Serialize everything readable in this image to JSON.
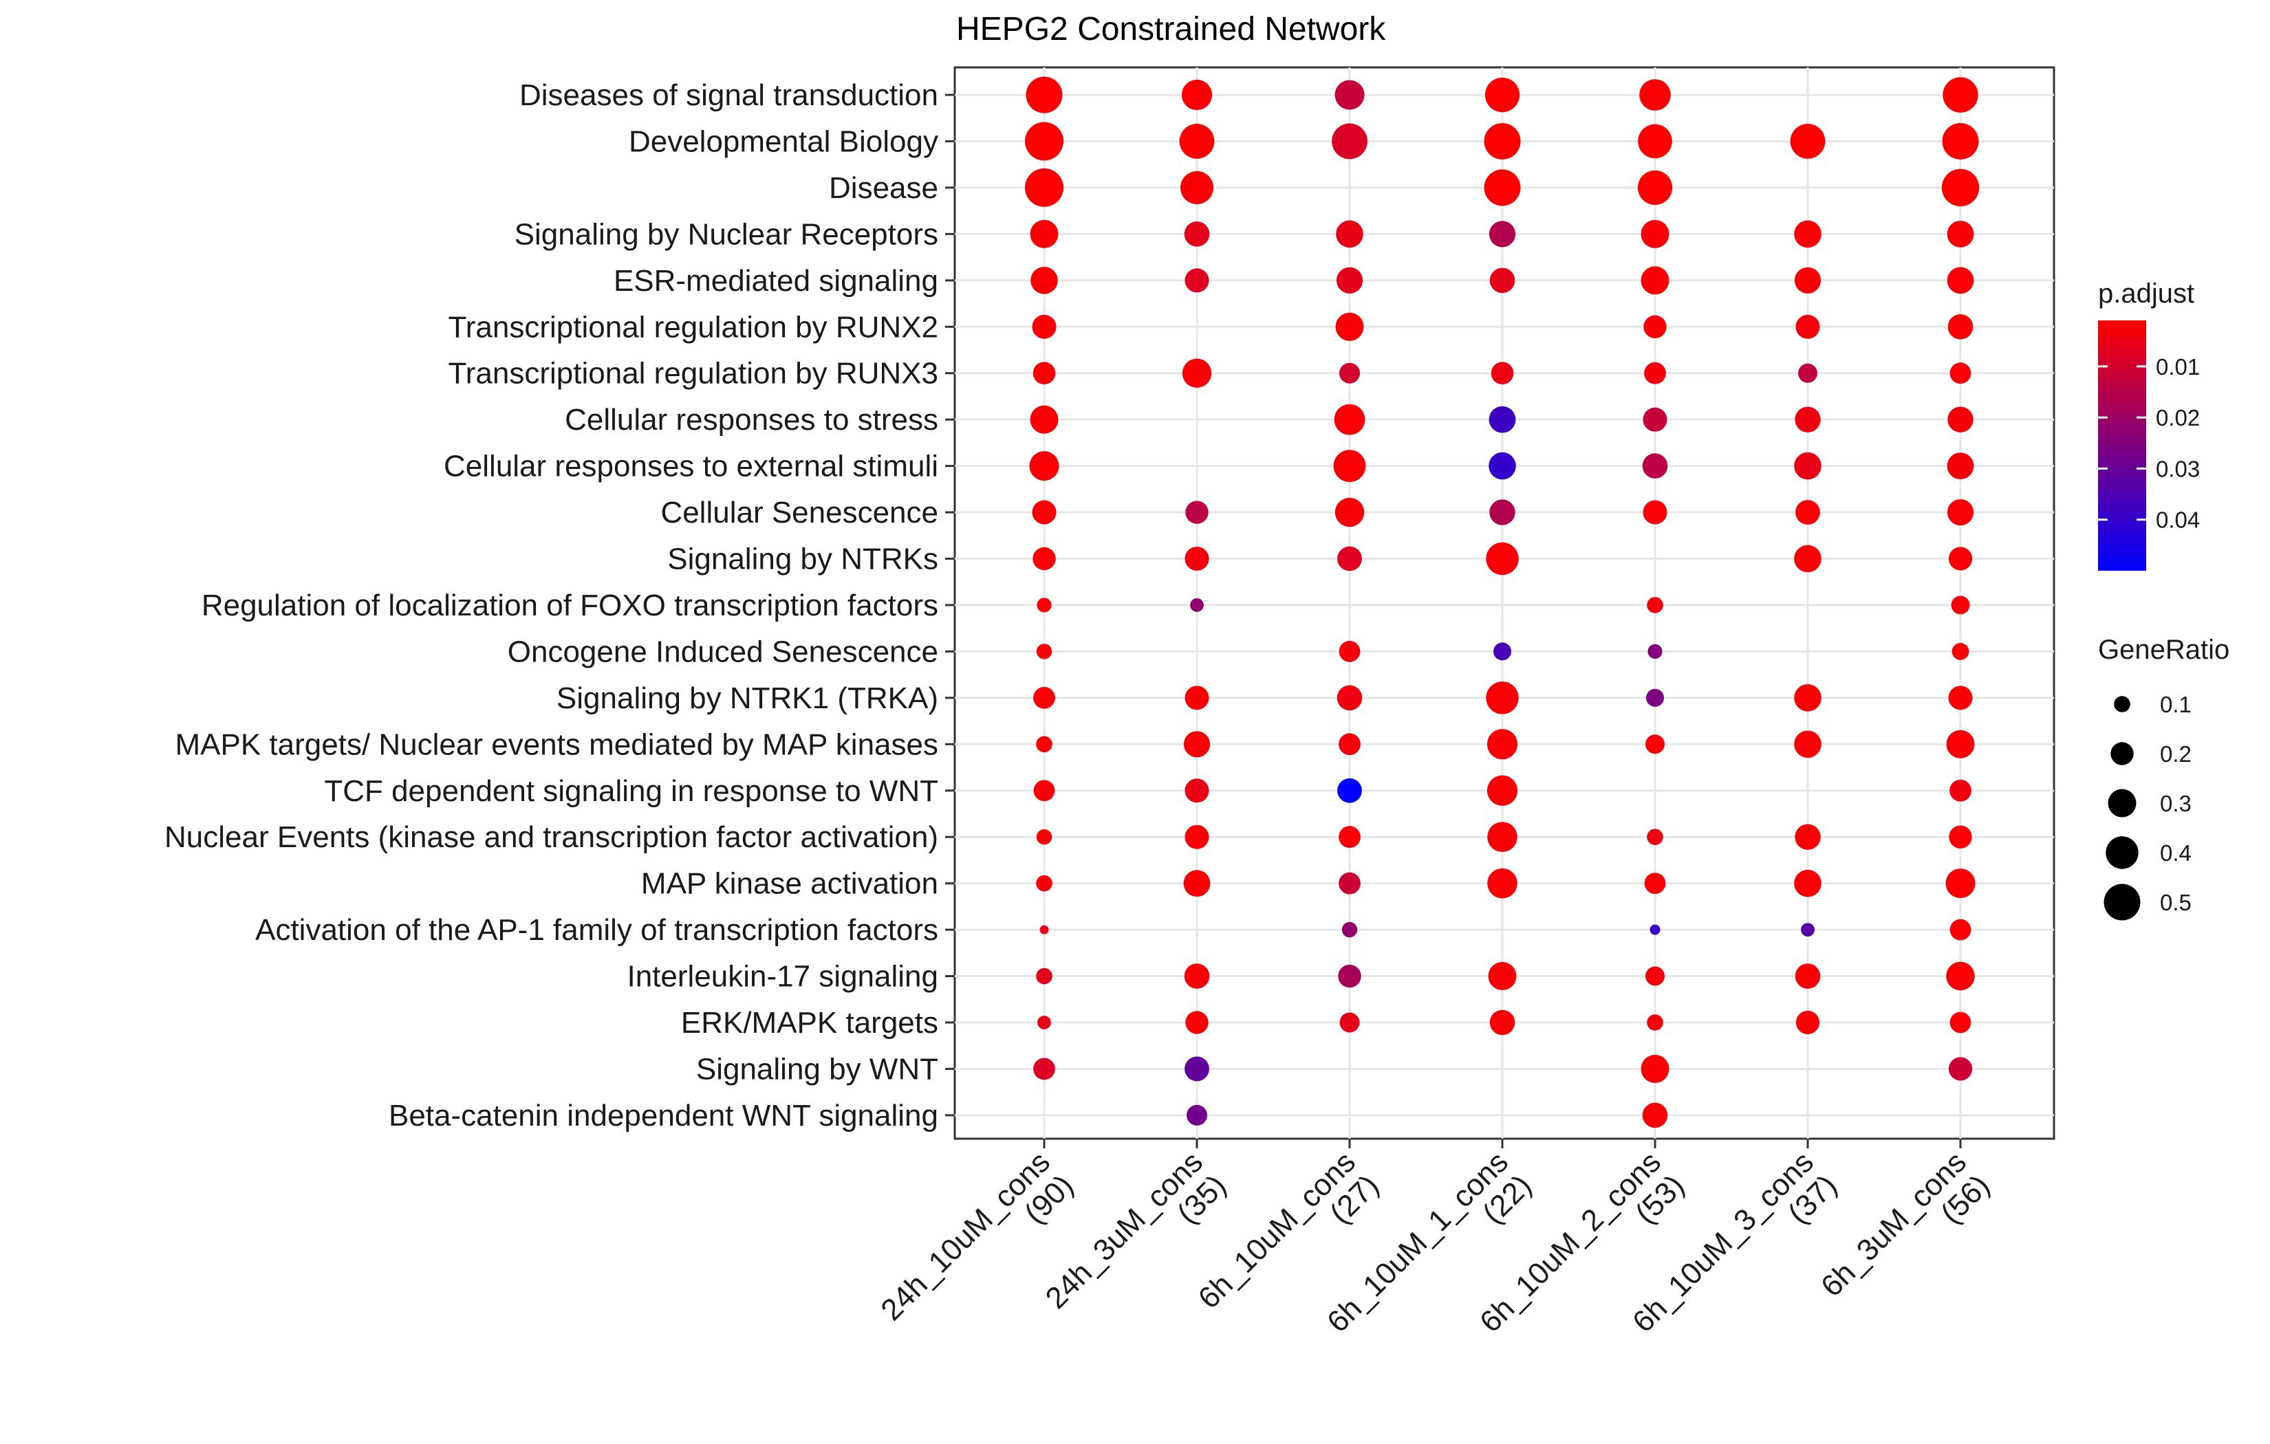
{
  "chart_data": {
    "type": "dot",
    "title": "HEPG2 Constrained Network",
    "xlabel": "",
    "ylabel": "",
    "grid": true,
    "legend_position": "right",
    "categories_x": [
      {
        "line1": "24h_10uM_cons",
        "line2": "(90)"
      },
      {
        "line1": "24h_3uM_cons",
        "line2": "(35)"
      },
      {
        "line1": "6h_10uM_cons",
        "line2": "(27)"
      },
      {
        "line1": "6h_10uM_1_cons",
        "line2": "(22)"
      },
      {
        "line1": "6h_10uM_2_cons",
        "line2": "(53)"
      },
      {
        "line1": "6h_10uM_3_cons",
        "line2": "(37)"
      },
      {
        "line1": "6h_3uM_cons",
        "line2": "(56)"
      }
    ],
    "categories_y": [
      "Diseases of signal transduction",
      "Developmental Biology",
      "Disease",
      "Signaling by Nuclear Receptors",
      "ESR-mediated signaling",
      "Transcriptional regulation by RUNX2",
      "Transcriptional regulation by RUNX3",
      "Cellular responses to stress",
      "Cellular responses to external stimuli",
      "Cellular Senescence",
      "Signaling by NTRKs",
      "Regulation of localization of FOXO transcription factors",
      "Oncogene Induced Senescence",
      "Signaling by NTRK1 (TRKA)",
      "MAPK targets/ Nuclear events mediated by MAP kinases",
      "TCF dependent signaling in response to WNT",
      "Nuclear Events (kinase and transcription factor activation)",
      "MAP kinase activation",
      "Activation of the AP-1 family of transcription factors",
      "Interleukin-17 signaling",
      "ERK/MAPK targets",
      "Signaling by WNT",
      "Beta-catenin independent WNT signaling"
    ],
    "points": [
      {
        "x": 0,
        "y": 0,
        "gene_ratio": 0.5,
        "p_adjust": 0.001
      },
      {
        "x": 1,
        "y": 0,
        "gene_ratio": 0.35,
        "p_adjust": 0.002
      },
      {
        "x": 2,
        "y": 0,
        "gene_ratio": 0.33,
        "p_adjust": 0.012
      },
      {
        "x": 3,
        "y": 0,
        "gene_ratio": 0.45,
        "p_adjust": 0.001
      },
      {
        "x": 4,
        "y": 0,
        "gene_ratio": 0.37,
        "p_adjust": 0.002
      },
      {
        "x": 6,
        "y": 0,
        "gene_ratio": 0.47,
        "p_adjust": 0.001
      },
      {
        "x": 0,
        "y": 1,
        "gene_ratio": 0.56,
        "p_adjust": 0.001
      },
      {
        "x": 1,
        "y": 1,
        "gene_ratio": 0.46,
        "p_adjust": 0.001
      },
      {
        "x": 2,
        "y": 1,
        "gene_ratio": 0.48,
        "p_adjust": 0.008
      },
      {
        "x": 3,
        "y": 1,
        "gene_ratio": 0.5,
        "p_adjust": 0.001
      },
      {
        "x": 4,
        "y": 1,
        "gene_ratio": 0.44,
        "p_adjust": 0.001
      },
      {
        "x": 5,
        "y": 1,
        "gene_ratio": 0.46,
        "p_adjust": 0.001
      },
      {
        "x": 6,
        "y": 1,
        "gene_ratio": 0.5,
        "p_adjust": 0.001
      },
      {
        "x": 0,
        "y": 2,
        "gene_ratio": 0.56,
        "p_adjust": 0.001
      },
      {
        "x": 1,
        "y": 2,
        "gene_ratio": 0.41,
        "p_adjust": 0.002
      },
      {
        "x": 3,
        "y": 2,
        "gene_ratio": 0.5,
        "p_adjust": 0.001
      },
      {
        "x": 4,
        "y": 2,
        "gene_ratio": 0.45,
        "p_adjust": 0.001
      },
      {
        "x": 6,
        "y": 2,
        "gene_ratio": 0.53,
        "p_adjust": 0.001
      },
      {
        "x": 0,
        "y": 3,
        "gene_ratio": 0.3,
        "p_adjust": 0.002
      },
      {
        "x": 1,
        "y": 3,
        "gene_ratio": 0.24,
        "p_adjust": 0.006
      },
      {
        "x": 2,
        "y": 3,
        "gene_ratio": 0.28,
        "p_adjust": 0.005
      },
      {
        "x": 3,
        "y": 3,
        "gene_ratio": 0.26,
        "p_adjust": 0.016
      },
      {
        "x": 4,
        "y": 3,
        "gene_ratio": 0.3,
        "p_adjust": 0.002
      },
      {
        "x": 5,
        "y": 3,
        "gene_ratio": 0.28,
        "p_adjust": 0.002
      },
      {
        "x": 6,
        "y": 3,
        "gene_ratio": 0.27,
        "p_adjust": 0.002
      },
      {
        "x": 0,
        "y": 4,
        "gene_ratio": 0.28,
        "p_adjust": 0.002
      },
      {
        "x": 1,
        "y": 4,
        "gene_ratio": 0.22,
        "p_adjust": 0.007
      },
      {
        "x": 2,
        "y": 4,
        "gene_ratio": 0.26,
        "p_adjust": 0.006
      },
      {
        "x": 3,
        "y": 4,
        "gene_ratio": 0.24,
        "p_adjust": 0.006
      },
      {
        "x": 4,
        "y": 4,
        "gene_ratio": 0.3,
        "p_adjust": 0.002
      },
      {
        "x": 5,
        "y": 4,
        "gene_ratio": 0.26,
        "p_adjust": 0.002
      },
      {
        "x": 6,
        "y": 4,
        "gene_ratio": 0.27,
        "p_adjust": 0.002
      },
      {
        "x": 0,
        "y": 5,
        "gene_ratio": 0.22,
        "p_adjust": 0.002
      },
      {
        "x": 2,
        "y": 5,
        "gene_ratio": 0.3,
        "p_adjust": 0.002
      },
      {
        "x": 4,
        "y": 5,
        "gene_ratio": 0.2,
        "p_adjust": 0.002
      },
      {
        "x": 5,
        "y": 5,
        "gene_ratio": 0.22,
        "p_adjust": 0.003
      },
      {
        "x": 6,
        "y": 5,
        "gene_ratio": 0.24,
        "p_adjust": 0.002
      },
      {
        "x": 0,
        "y": 6,
        "gene_ratio": 0.19,
        "p_adjust": 0.002
      },
      {
        "x": 1,
        "y": 6,
        "gene_ratio": 0.32,
        "p_adjust": 0.002
      },
      {
        "x": 2,
        "y": 6,
        "gene_ratio": 0.16,
        "p_adjust": 0.01
      },
      {
        "x": 3,
        "y": 6,
        "gene_ratio": 0.19,
        "p_adjust": 0.004
      },
      {
        "x": 4,
        "y": 6,
        "gene_ratio": 0.18,
        "p_adjust": 0.003
      },
      {
        "x": 5,
        "y": 6,
        "gene_ratio": 0.14,
        "p_adjust": 0.013
      },
      {
        "x": 6,
        "y": 6,
        "gene_ratio": 0.17,
        "p_adjust": 0.002
      },
      {
        "x": 0,
        "y": 7,
        "gene_ratio": 0.3,
        "p_adjust": 0.002
      },
      {
        "x": 2,
        "y": 7,
        "gene_ratio": 0.36,
        "p_adjust": 0.002
      },
      {
        "x": 3,
        "y": 7,
        "gene_ratio": 0.27,
        "p_adjust": 0.038
      },
      {
        "x": 4,
        "y": 7,
        "gene_ratio": 0.22,
        "p_adjust": 0.012
      },
      {
        "x": 5,
        "y": 7,
        "gene_ratio": 0.25,
        "p_adjust": 0.004
      },
      {
        "x": 6,
        "y": 7,
        "gene_ratio": 0.25,
        "p_adjust": 0.003
      },
      {
        "x": 0,
        "y": 8,
        "gene_ratio": 0.33,
        "p_adjust": 0.002
      },
      {
        "x": 2,
        "y": 8,
        "gene_ratio": 0.39,
        "p_adjust": 0.002
      },
      {
        "x": 3,
        "y": 8,
        "gene_ratio": 0.28,
        "p_adjust": 0.04
      },
      {
        "x": 4,
        "y": 8,
        "gene_ratio": 0.24,
        "p_adjust": 0.014
      },
      {
        "x": 5,
        "y": 8,
        "gene_ratio": 0.28,
        "p_adjust": 0.005
      },
      {
        "x": 6,
        "y": 8,
        "gene_ratio": 0.27,
        "p_adjust": 0.003
      },
      {
        "x": 0,
        "y": 9,
        "gene_ratio": 0.22,
        "p_adjust": 0.002
      },
      {
        "x": 1,
        "y": 9,
        "gene_ratio": 0.2,
        "p_adjust": 0.014
      },
      {
        "x": 2,
        "y": 9,
        "gene_ratio": 0.32,
        "p_adjust": 0.002
      },
      {
        "x": 3,
        "y": 9,
        "gene_ratio": 0.25,
        "p_adjust": 0.016
      },
      {
        "x": 4,
        "y": 9,
        "gene_ratio": 0.22,
        "p_adjust": 0.002
      },
      {
        "x": 5,
        "y": 9,
        "gene_ratio": 0.23,
        "p_adjust": 0.002
      },
      {
        "x": 6,
        "y": 9,
        "gene_ratio": 0.26,
        "p_adjust": 0.002
      },
      {
        "x": 0,
        "y": 10,
        "gene_ratio": 0.2,
        "p_adjust": 0.002
      },
      {
        "x": 1,
        "y": 10,
        "gene_ratio": 0.22,
        "p_adjust": 0.003
      },
      {
        "x": 2,
        "y": 10,
        "gene_ratio": 0.23,
        "p_adjust": 0.007
      },
      {
        "x": 3,
        "y": 10,
        "gene_ratio": 0.4,
        "p_adjust": 0.002
      },
      {
        "x": 5,
        "y": 10,
        "gene_ratio": 0.28,
        "p_adjust": 0.002
      },
      {
        "x": 6,
        "y": 10,
        "gene_ratio": 0.21,
        "p_adjust": 0.002
      },
      {
        "x": 0,
        "y": 11,
        "gene_ratio": 0.08,
        "p_adjust": 0.002
      },
      {
        "x": 1,
        "y": 11,
        "gene_ratio": 0.07,
        "p_adjust": 0.022
      },
      {
        "x": 4,
        "y": 11,
        "gene_ratio": 0.1,
        "p_adjust": 0.003
      },
      {
        "x": 6,
        "y": 11,
        "gene_ratio": 0.13,
        "p_adjust": 0.002
      },
      {
        "x": 0,
        "y": 12,
        "gene_ratio": 0.09,
        "p_adjust": 0.002
      },
      {
        "x": 2,
        "y": 12,
        "gene_ratio": 0.17,
        "p_adjust": 0.003
      },
      {
        "x": 3,
        "y": 12,
        "gene_ratio": 0.12,
        "p_adjust": 0.036
      },
      {
        "x": 4,
        "y": 12,
        "gene_ratio": 0.08,
        "p_adjust": 0.025
      },
      {
        "x": 6,
        "y": 12,
        "gene_ratio": 0.11,
        "p_adjust": 0.002
      },
      {
        "x": 0,
        "y": 13,
        "gene_ratio": 0.18,
        "p_adjust": 0.002
      },
      {
        "x": 1,
        "y": 13,
        "gene_ratio": 0.22,
        "p_adjust": 0.002
      },
      {
        "x": 2,
        "y": 13,
        "gene_ratio": 0.24,
        "p_adjust": 0.004
      },
      {
        "x": 3,
        "y": 13,
        "gene_ratio": 0.4,
        "p_adjust": 0.002
      },
      {
        "x": 4,
        "y": 13,
        "gene_ratio": 0.12,
        "p_adjust": 0.026
      },
      {
        "x": 5,
        "y": 13,
        "gene_ratio": 0.28,
        "p_adjust": 0.002
      },
      {
        "x": 6,
        "y": 13,
        "gene_ratio": 0.22,
        "p_adjust": 0.002
      },
      {
        "x": 0,
        "y": 14,
        "gene_ratio": 0.1,
        "p_adjust": 0.002
      },
      {
        "x": 1,
        "y": 14,
        "gene_ratio": 0.26,
        "p_adjust": 0.002
      },
      {
        "x": 2,
        "y": 14,
        "gene_ratio": 0.18,
        "p_adjust": 0.003
      },
      {
        "x": 3,
        "y": 14,
        "gene_ratio": 0.35,
        "p_adjust": 0.002
      },
      {
        "x": 4,
        "y": 14,
        "gene_ratio": 0.14,
        "p_adjust": 0.002
      },
      {
        "x": 5,
        "y": 14,
        "gene_ratio": 0.28,
        "p_adjust": 0.002
      },
      {
        "x": 6,
        "y": 14,
        "gene_ratio": 0.3,
        "p_adjust": 0.002
      },
      {
        "x": 0,
        "y": 15,
        "gene_ratio": 0.17,
        "p_adjust": 0.002
      },
      {
        "x": 1,
        "y": 15,
        "gene_ratio": 0.22,
        "p_adjust": 0.005
      },
      {
        "x": 2,
        "y": 15,
        "gene_ratio": 0.23,
        "p_adjust": 0.05
      },
      {
        "x": 3,
        "y": 15,
        "gene_ratio": 0.35,
        "p_adjust": 0.002
      },
      {
        "x": 6,
        "y": 15,
        "gene_ratio": 0.18,
        "p_adjust": 0.004
      },
      {
        "x": 0,
        "y": 16,
        "gene_ratio": 0.09,
        "p_adjust": 0.002
      },
      {
        "x": 1,
        "y": 16,
        "gene_ratio": 0.22,
        "p_adjust": 0.002
      },
      {
        "x": 2,
        "y": 16,
        "gene_ratio": 0.18,
        "p_adjust": 0.002
      },
      {
        "x": 3,
        "y": 16,
        "gene_ratio": 0.34,
        "p_adjust": 0.002
      },
      {
        "x": 4,
        "y": 16,
        "gene_ratio": 0.1,
        "p_adjust": 0.004
      },
      {
        "x": 5,
        "y": 16,
        "gene_ratio": 0.25,
        "p_adjust": 0.002
      },
      {
        "x": 6,
        "y": 16,
        "gene_ratio": 0.2,
        "p_adjust": 0.002
      },
      {
        "x": 0,
        "y": 17,
        "gene_ratio": 0.1,
        "p_adjust": 0.003
      },
      {
        "x": 1,
        "y": 17,
        "gene_ratio": 0.27,
        "p_adjust": 0.002
      },
      {
        "x": 2,
        "y": 17,
        "gene_ratio": 0.18,
        "p_adjust": 0.011
      },
      {
        "x": 3,
        "y": 17,
        "gene_ratio": 0.34,
        "p_adjust": 0.002
      },
      {
        "x": 4,
        "y": 17,
        "gene_ratio": 0.17,
        "p_adjust": 0.002
      },
      {
        "x": 5,
        "y": 17,
        "gene_ratio": 0.28,
        "p_adjust": 0.002
      },
      {
        "x": 6,
        "y": 17,
        "gene_ratio": 0.33,
        "p_adjust": 0.002
      },
      {
        "x": 0,
        "y": 18,
        "gene_ratio": 0.03,
        "p_adjust": 0.006
      },
      {
        "x": 2,
        "y": 18,
        "gene_ratio": 0.09,
        "p_adjust": 0.022
      },
      {
        "x": 4,
        "y": 18,
        "gene_ratio": 0.04,
        "p_adjust": 0.04
      },
      {
        "x": 5,
        "y": 18,
        "gene_ratio": 0.07,
        "p_adjust": 0.033
      },
      {
        "x": 6,
        "y": 18,
        "gene_ratio": 0.17,
        "p_adjust": 0.002
      },
      {
        "x": 0,
        "y": 19,
        "gene_ratio": 0.1,
        "p_adjust": 0.006
      },
      {
        "x": 1,
        "y": 19,
        "gene_ratio": 0.24,
        "p_adjust": 0.002
      },
      {
        "x": 2,
        "y": 19,
        "gene_ratio": 0.2,
        "p_adjust": 0.018
      },
      {
        "x": 3,
        "y": 19,
        "gene_ratio": 0.3,
        "p_adjust": 0.002
      },
      {
        "x": 4,
        "y": 19,
        "gene_ratio": 0.14,
        "p_adjust": 0.003
      },
      {
        "x": 5,
        "y": 19,
        "gene_ratio": 0.24,
        "p_adjust": 0.002
      },
      {
        "x": 6,
        "y": 19,
        "gene_ratio": 0.31,
        "p_adjust": 0.002
      },
      {
        "x": 0,
        "y": 20,
        "gene_ratio": 0.07,
        "p_adjust": 0.006
      },
      {
        "x": 1,
        "y": 20,
        "gene_ratio": 0.2,
        "p_adjust": 0.002
      },
      {
        "x": 2,
        "y": 20,
        "gene_ratio": 0.15,
        "p_adjust": 0.006
      },
      {
        "x": 3,
        "y": 20,
        "gene_ratio": 0.24,
        "p_adjust": 0.002
      },
      {
        "x": 4,
        "y": 20,
        "gene_ratio": 0.1,
        "p_adjust": 0.003
      },
      {
        "x": 5,
        "y": 20,
        "gene_ratio": 0.21,
        "p_adjust": 0.002
      },
      {
        "x": 6,
        "y": 20,
        "gene_ratio": 0.17,
        "p_adjust": 0.002
      },
      {
        "x": 0,
        "y": 21,
        "gene_ratio": 0.18,
        "p_adjust": 0.008
      },
      {
        "x": 1,
        "y": 21,
        "gene_ratio": 0.23,
        "p_adjust": 0.031
      },
      {
        "x": 4,
        "y": 21,
        "gene_ratio": 0.3,
        "p_adjust": 0.002
      },
      {
        "x": 6,
        "y": 21,
        "gene_ratio": 0.21,
        "p_adjust": 0.011
      },
      {
        "x": 1,
        "y": 22,
        "gene_ratio": 0.16,
        "p_adjust": 0.028
      },
      {
        "x": 4,
        "y": 22,
        "gene_ratio": 0.24,
        "p_adjust": 0.002
      }
    ],
    "legend_color": {
      "title": "p.adjust",
      "ticks": [
        {
          "value": 0.01,
          "label": "0.01"
        },
        {
          "value": 0.02,
          "label": "0.02"
        },
        {
          "value": 0.03,
          "label": "0.03"
        },
        {
          "value": 0.04,
          "label": "0.04"
        }
      ],
      "range": [
        0.001,
        0.05
      ],
      "low_color": "#FF0000",
      "high_color": "#0000FF"
    },
    "legend_size": {
      "title": "GeneRatio",
      "items": [
        {
          "value": 0.1,
          "label": "0.1"
        },
        {
          "value": 0.2,
          "label": "0.2"
        },
        {
          "value": 0.3,
          "label": "0.3"
        },
        {
          "value": 0.4,
          "label": "0.4"
        },
        {
          "value": 0.5,
          "label": "0.5"
        }
      ]
    }
  }
}
